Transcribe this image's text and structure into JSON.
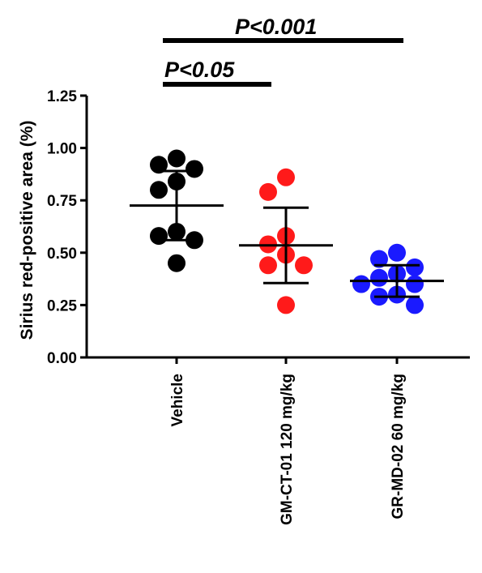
{
  "chart_data": {
    "type": "scatter",
    "title": "",
    "xlabel": "",
    "ylabel": "Sirius red-positive area (%)",
    "ylim": [
      0,
      1.25
    ],
    "yticks": [
      "0.00",
      "0.25",
      "0.50",
      "0.75",
      "1.00",
      "1.25"
    ],
    "grid": false,
    "categories": [
      "Vehicle",
      "GM-CT-01 120 mg/kg",
      "GR-MD-02 60 mg/kg"
    ],
    "series": [
      {
        "category": "Vehicle",
        "color": "#000000",
        "values": [
          0.95,
          0.92,
          0.9,
          0.84,
          0.8,
          0.6,
          0.58,
          0.56,
          0.45
        ],
        "mean": 0.725,
        "sd_upper": 0.89,
        "sd_lower": 0.56
      },
      {
        "category": "GM-CT-01 120 mg/kg",
        "color": "#ff1a1a",
        "values": [
          0.86,
          0.79,
          0.58,
          0.54,
          0.49,
          0.44,
          0.44,
          0.25
        ],
        "mean": 0.535,
        "sd_upper": 0.715,
        "sd_lower": 0.355
      },
      {
        "category": "GR-MD-02 60 mg/kg",
        "color": "#1a1aff",
        "values": [
          0.5,
          0.47,
          0.43,
          0.4,
          0.38,
          0.35,
          0.35,
          0.3,
          0.29,
          0.25
        ],
        "mean": 0.365,
        "sd_upper": 0.44,
        "sd_lower": 0.29
      }
    ],
    "significance": [
      {
        "from": "Vehicle",
        "to": "GM-CT-01 120 mg/kg",
        "label": "P<0.05"
      },
      {
        "from": "Vehicle",
        "to": "GR-MD-02 60 mg/kg",
        "label": "P<0.001"
      }
    ]
  }
}
